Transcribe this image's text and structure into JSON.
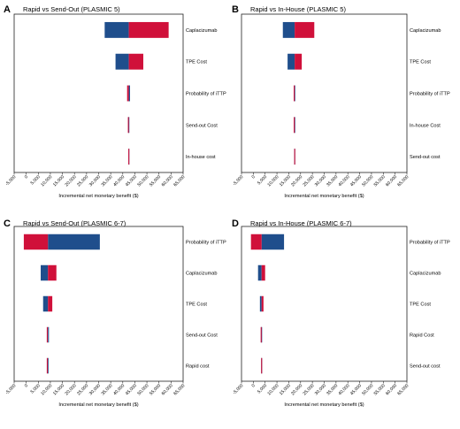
{
  "colors": {
    "low": "#1f4e8c",
    "high": "#d0103a",
    "axis": "#222222"
  },
  "chart_data": [
    {
      "type": "bar",
      "subtype": "tornado",
      "panel": "A",
      "title": "Rapid vs Send-Out (PLASMIC 5)",
      "xlabel": "Incremental net monetary benefit ($)",
      "xlim": [
        -5000,
        65000
      ],
      "xticks": [
        "-5,000",
        "0",
        "5,000",
        "10,000",
        "15,000",
        "20,000",
        "25,000",
        "30,000",
        "35,000",
        "40,000",
        "45,000",
        "50,000",
        "55,000",
        "60,000",
        "65,000"
      ],
      "base": 42500,
      "categories": [
        "Caplacizumab",
        "TPE Cost",
        "Probability of iTTP",
        "Send-out Cost",
        "In-house cost"
      ],
      "series": [
        {
          "values": [
            [
              32500,
              42500
            ],
            [
              37000,
              42500
            ],
            [
              42500,
              43000
            ],
            [
              42500,
              42500
            ],
            [
              42500,
              42500
            ]
          ]
        },
        {
          "values": [
            [
              42500,
              59000
            ],
            [
              42500,
              48500
            ],
            [
              41800,
              42500
            ],
            [
              42300,
              42500
            ],
            [
              42500,
              42500
            ]
          ]
        }
      ]
    },
    {
      "type": "bar",
      "subtype": "tornado",
      "panel": "B",
      "title": "Rapid vs In-House (PLASMIC 5)",
      "xlabel": "Incremental net monetary benefit ($)",
      "xlim": [
        -5000,
        65000
      ],
      "xticks": [
        "-5,000",
        "0",
        "5,000",
        "10,000",
        "15,000",
        "20,000",
        "25,000",
        "30,000",
        "35,000",
        "40,000",
        "45,000",
        "50,000",
        "55,000",
        "60,000",
        "65,000"
      ],
      "base": 17500,
      "categories": [
        "Caplacizumab",
        "TPE Cost",
        "Probability of iTTP",
        "In-house Cost",
        "Send-out cost"
      ],
      "series": [
        {
          "values": [
            [
              12500,
              17500
            ],
            [
              14500,
              17500
            ],
            [
              17500,
              17800
            ],
            [
              17500,
              17500
            ],
            [
              17500,
              17500
            ]
          ]
        },
        {
          "values": [
            [
              17500,
              25800
            ],
            [
              17500,
              20500
            ],
            [
              17100,
              17500
            ],
            [
              17300,
              17500
            ],
            [
              17500,
              17500
            ]
          ]
        }
      ]
    },
    {
      "type": "bar",
      "subtype": "tornado",
      "panel": "C",
      "title": "Rapid vs Send-Out (PLASMIC 6-7)",
      "xlabel": "Incremental net monetary benefit ($)",
      "xlim": [
        -5000,
        65000
      ],
      "xticks": [
        "-5,000",
        "0",
        "5,000",
        "10,000",
        "15,000",
        "20,000",
        "25,000",
        "30,000",
        "35,000",
        "40,000",
        "45,000",
        "50,000",
        "55,000",
        "60,000",
        "65,000"
      ],
      "base": 9000,
      "categories": [
        "Probability of iTTP",
        "Caplacizumab",
        "TPE Cost",
        "Send-out Cost",
        "Rapid cost"
      ],
      "series": [
        {
          "values": [
            [
              9000,
              30500
            ],
            [
              6000,
              9000
            ],
            [
              7000,
              9000
            ],
            [
              9000,
              9400
            ],
            [
              9000,
              9000
            ]
          ]
        },
        {
          "values": [
            [
              -1000,
              9000
            ],
            [
              9000,
              12500
            ],
            [
              9000,
              10800
            ],
            [
              8700,
              9000
            ],
            [
              8700,
              9000
            ]
          ]
        }
      ]
    },
    {
      "type": "bar",
      "subtype": "tornado",
      "panel": "D",
      "title": "Rapid vs In-House (PLASMIC 6-7)",
      "xlabel": "Incremental net monetary benefit ($)",
      "xlim": [
        -5000,
        65000
      ],
      "xticks": [
        "-5,000",
        "0",
        "5,000",
        "10,000",
        "15,000",
        "20,000",
        "25,000",
        "30,000",
        "35,000",
        "40,000",
        "45,000",
        "50,000",
        "55,000",
        "60,000",
        "65,000"
      ],
      "base": 3500,
      "categories": [
        "Probability of iTTP",
        "Caplacizumab",
        "TPE Cost",
        "Rapid Cost",
        "Send-out cost"
      ],
      "series": [
        {
          "values": [
            [
              3500,
              13000
            ],
            [
              2000,
              3500
            ],
            [
              2800,
              3500
            ],
            [
              3500,
              3500
            ],
            [
              3500,
              3500
            ]
          ]
        },
        {
          "values": [
            [
              -1000,
              3500
            ],
            [
              3500,
              5000
            ],
            [
              3500,
              4300
            ],
            [
              3300,
              3500
            ],
            [
              3500,
              3500
            ]
          ]
        }
      ]
    }
  ]
}
